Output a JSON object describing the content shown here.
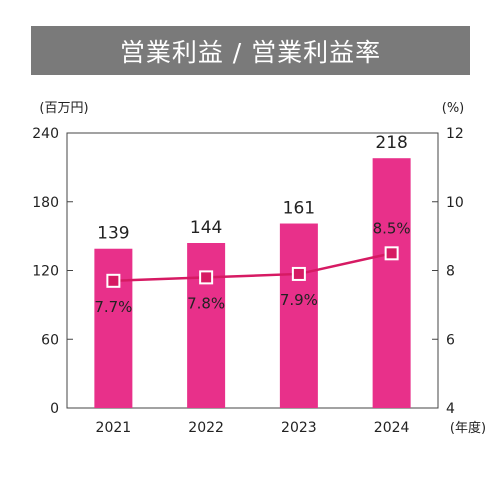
{
  "chart_data": {
    "type": "bar+line",
    "title": "営業利益 / 営業利益率",
    "categories": [
      "2021",
      "2022",
      "2023",
      "2024"
    ],
    "x_unit": "(年度)",
    "left_axis": {
      "unit": "(百万円)",
      "ticks": [
        0,
        60,
        120,
        180,
        240
      ],
      "ylim": [
        0,
        240
      ]
    },
    "right_axis": {
      "unit": "(%)",
      "ticks": [
        4,
        6,
        8,
        10,
        12
      ],
      "ylim": [
        4,
        12
      ]
    },
    "series": [
      {
        "type": "bar",
        "axis": "left",
        "values": [
          139,
          144,
          161,
          218
        ],
        "labels": [
          "139",
          "144",
          "161",
          "218"
        ]
      },
      {
        "type": "line",
        "axis": "right",
        "values": [
          7.7,
          7.8,
          7.9,
          8.5
        ],
        "labels": [
          "7.7%",
          "7.8%",
          "7.9%",
          "8.5%"
        ]
      }
    ],
    "grid": false,
    "colors": {
      "bar": "#e8308a",
      "line": "#d61a63",
      "title_bg": "#7a7a7a",
      "axis": "#444444"
    }
  }
}
